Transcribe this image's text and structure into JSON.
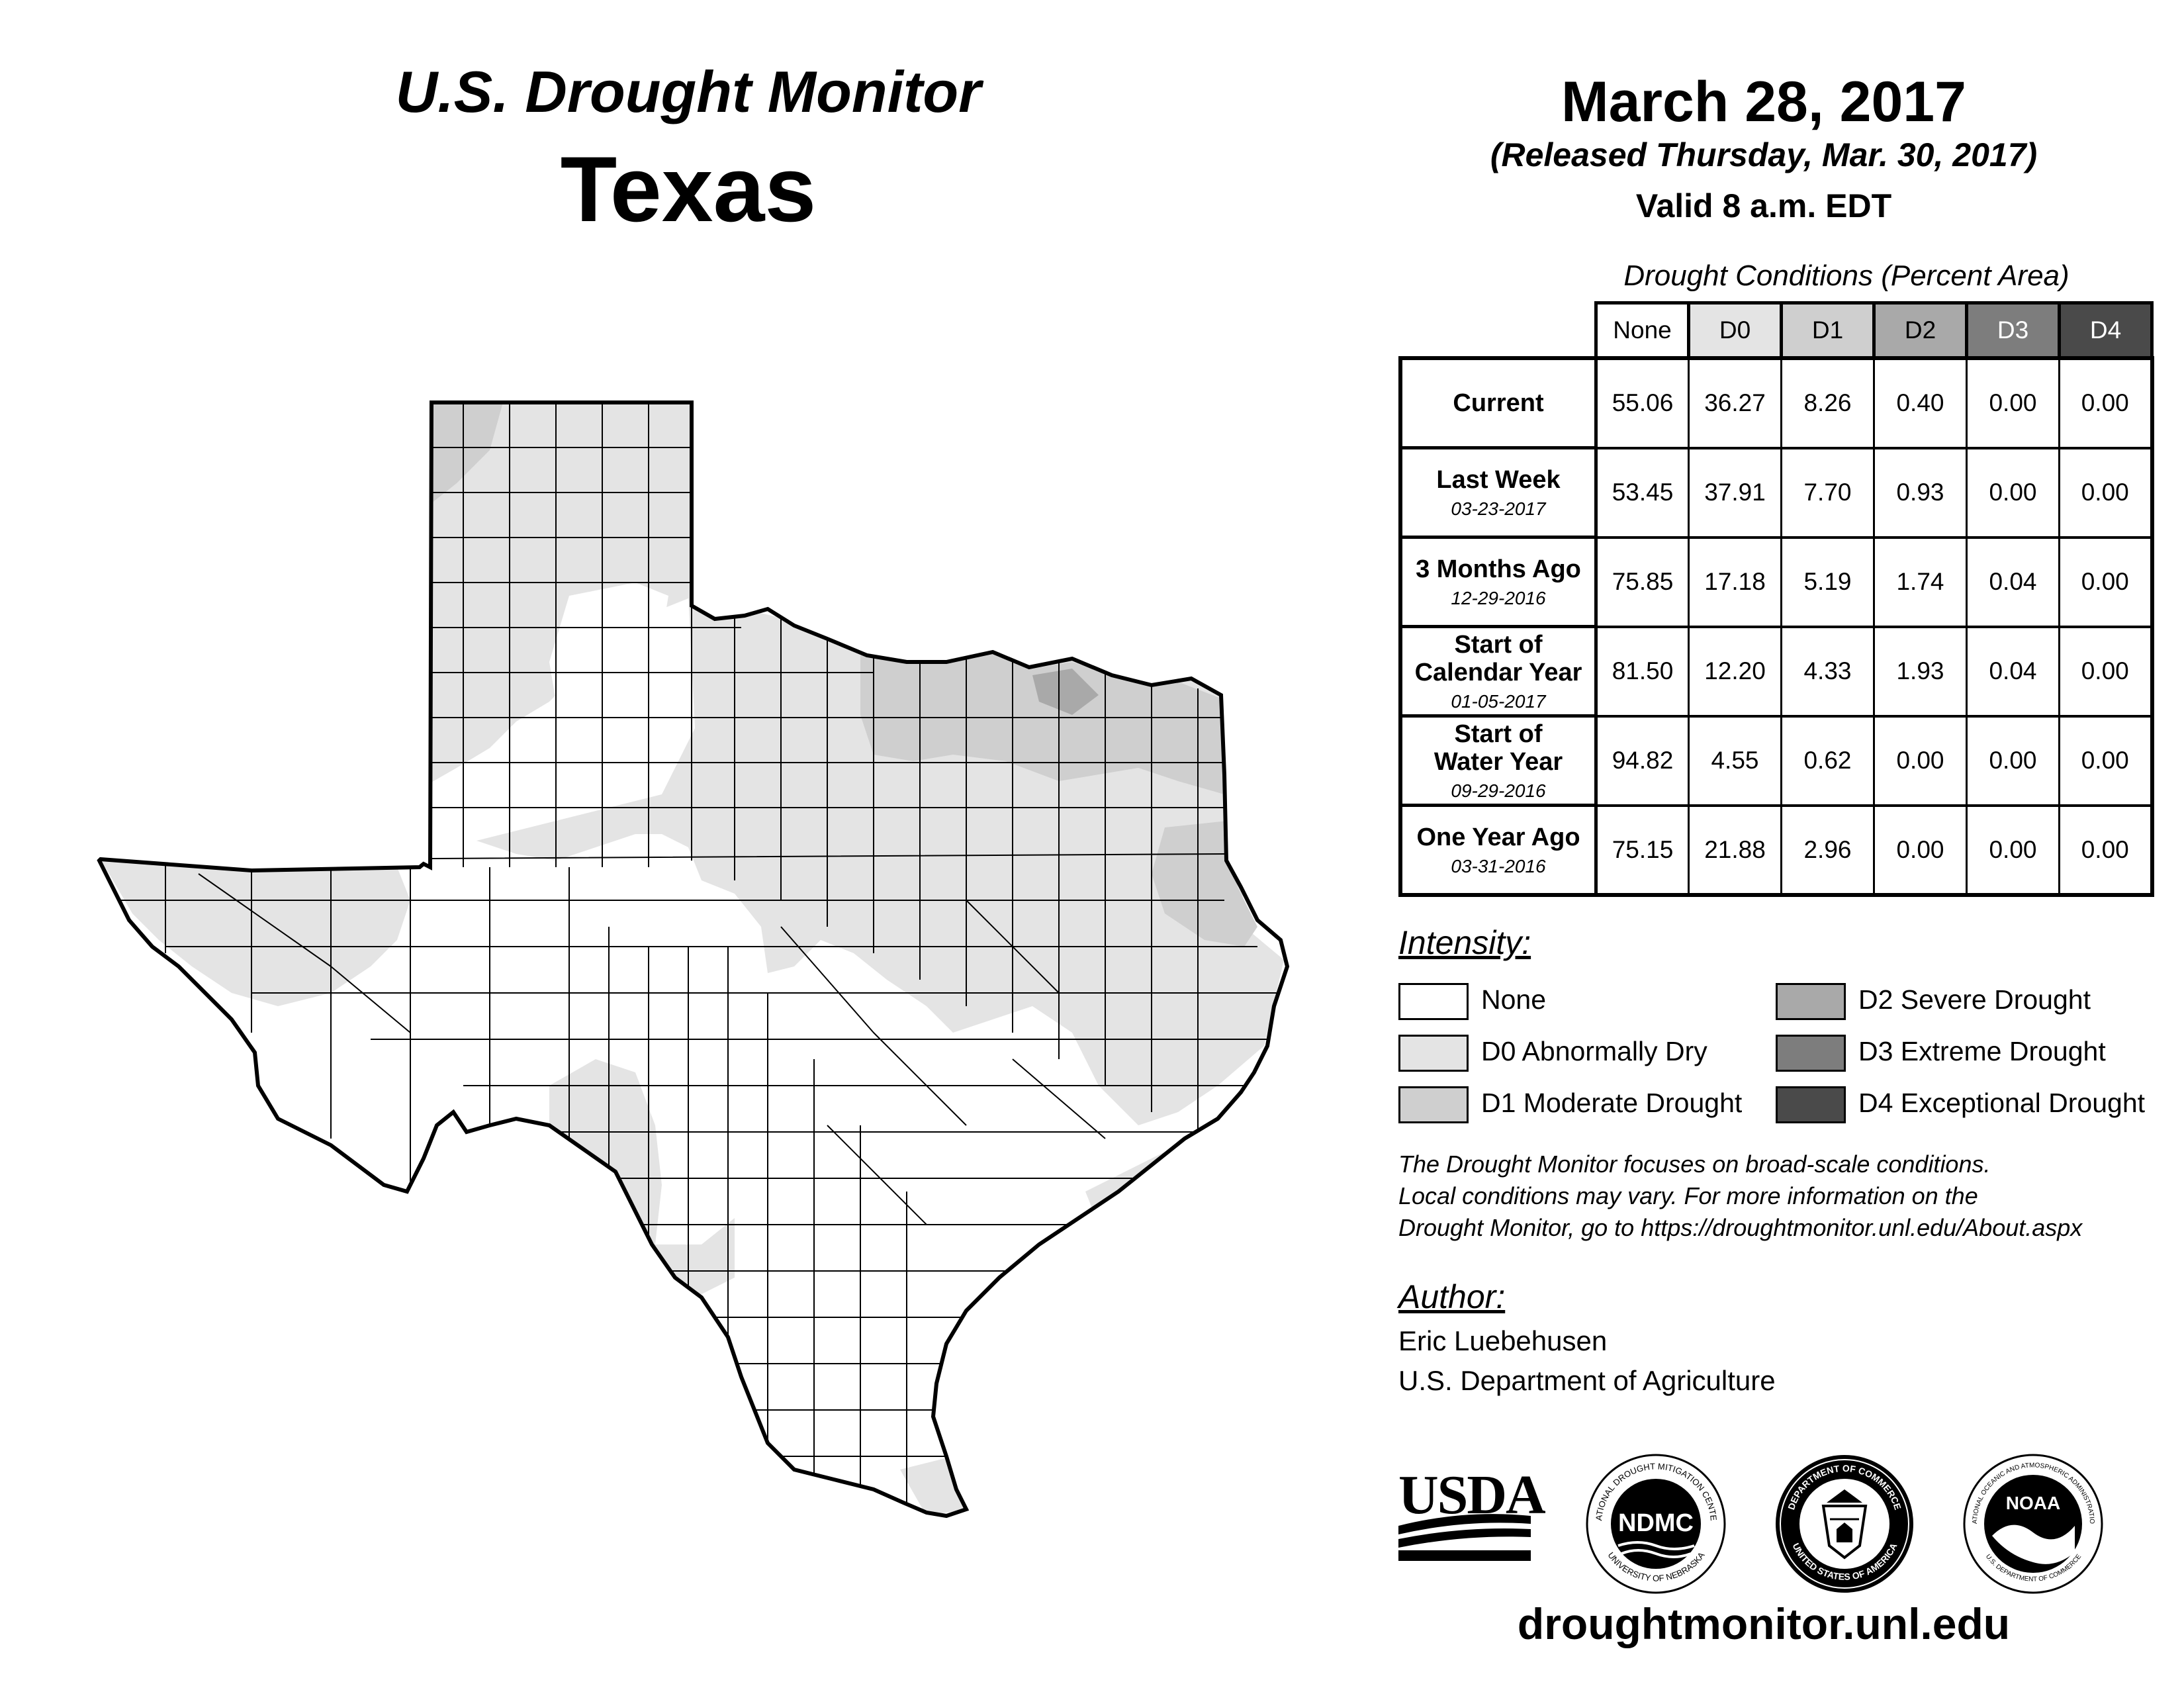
{
  "header": {
    "monitor_title": "U.S. Drought Monitor",
    "state": "Texas",
    "date": "March 28, 2017",
    "released": "(Released Thursday, Mar. 30, 2017)",
    "valid": "Valid 8 a.m. EDT"
  },
  "table": {
    "caption": "Drought Conditions (Percent Area)",
    "columns": [
      "None",
      "D0",
      "D1",
      "D2",
      "D3",
      "D4"
    ],
    "column_colors": [
      "#ffffff",
      "#e4e4e4",
      "#cfcfcf",
      "#a9a9a9",
      "#7d7d7d",
      "#4a4a4a"
    ],
    "column_text_colors": [
      "#000000",
      "#000000",
      "#000000",
      "#000000",
      "#ffffff",
      "#ffffff"
    ],
    "rows": [
      {
        "label": "Current",
        "sub": "",
        "values": [
          "55.06",
          "36.27",
          "8.26",
          "0.40",
          "0.00",
          "0.00"
        ]
      },
      {
        "label": "Last Week",
        "sub": "03-23-2017",
        "values": [
          "53.45",
          "37.91",
          "7.70",
          "0.93",
          "0.00",
          "0.00"
        ]
      },
      {
        "label": "3 Months Ago",
        "sub": "12-29-2016",
        "values": [
          "75.85",
          "17.18",
          "5.19",
          "1.74",
          "0.04",
          "0.00"
        ]
      },
      {
        "label": "Start of\nCalendar Year",
        "sub": "01-05-2017",
        "values": [
          "81.50",
          "12.20",
          "4.33",
          "1.93",
          "0.04",
          "0.00"
        ]
      },
      {
        "label": "Start of\nWater Year",
        "sub": "09-29-2016",
        "values": [
          "94.82",
          "4.55",
          "0.62",
          "0.00",
          "0.00",
          "0.00"
        ]
      },
      {
        "label": "One Year Ago",
        "sub": "03-31-2016",
        "values": [
          "75.15",
          "21.88",
          "2.96",
          "0.00",
          "0.00",
          "0.00"
        ]
      }
    ]
  },
  "legend": {
    "title": "Intensity:",
    "items": [
      {
        "label": "None",
        "color": "#ffffff"
      },
      {
        "label": "D0 Abnormally Dry",
        "color": "#e4e4e4"
      },
      {
        "label": "D1 Moderate Drought",
        "color": "#cfcfcf"
      },
      {
        "label": "D2 Severe Drought",
        "color": "#a9a9a9"
      },
      {
        "label": "D3 Extreme Drought",
        "color": "#7d7d7d"
      },
      {
        "label": "D4 Exceptional Drought",
        "color": "#4a4a4a"
      }
    ]
  },
  "disclaimer": {
    "line1": "The Drought Monitor focuses on broad-scale conditions.",
    "line2": "Local conditions may vary. For more information on the",
    "line3": "Drought Monitor, go to https://droughtmonitor.unl.edu/About.aspx"
  },
  "author": {
    "title": "Author:",
    "name": "Eric Luebehusen",
    "org": "U.S. Department of Agriculture"
  },
  "logos": {
    "usda": "USDA",
    "ndmc": "NDMC",
    "ndmc_ring_top": "NATIONAL DROUGHT MITIGATION CENTER",
    "ndmc_ring_bottom": "UNIVERSITY OF NEBRASKA",
    "doc_ring_top": "DEPARTMENT OF COMMERCE",
    "doc_ring_bottom": "UNITED STATES OF AMERICA",
    "noaa": "NOAA",
    "noaa_ring_top": "NATIONAL OCEANIC AND ATMOSPHERIC ADMINISTRATION",
    "noaa_ring_bottom": "U.S. DEPARTMENT OF COMMERCE"
  },
  "website": "droughtmonitor.unl.edu"
}
